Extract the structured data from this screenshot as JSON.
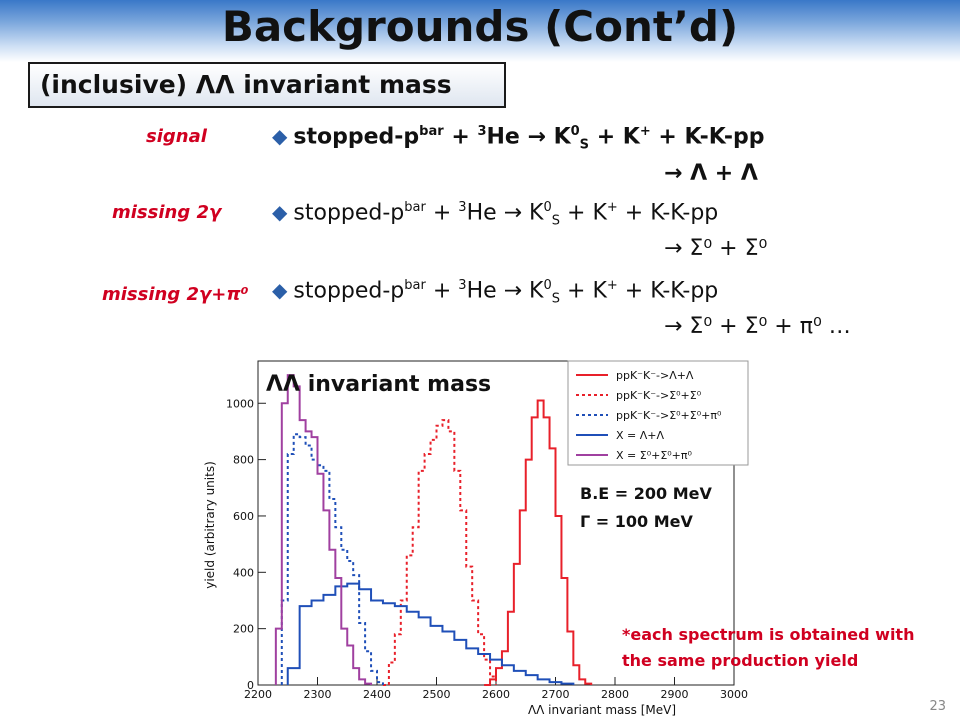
{
  "slide": {
    "title": "Backgrounds (Cont’d)",
    "subtitle": "(inclusive) ΛΛ invariant mass",
    "page_number": "23"
  },
  "reactions": [
    {
      "label": "signal",
      "line1_pre": "stopped-p",
      "line1_sup1": "bar",
      "line1_mid": " + ",
      "line1_sup2": "3",
      "line1_post": "He → K",
      "line1_sup3": "0",
      "line1_sub3": "S",
      "line1_end": " + K",
      "line1_sup4": "+",
      "line1_tail": " + K-K-pp",
      "line2": "→ Λ + Λ",
      "bold": true
    },
    {
      "label": "missing 2γ",
      "line1_pre": "stopped-p",
      "line1_sup1": "bar",
      "line1_mid": " + ",
      "line1_sup2": "3",
      "line1_post": "He → K",
      "line1_sup3": "0",
      "line1_sub3": "S",
      "line1_end": " + K",
      "line1_sup4": "+",
      "line1_tail": " + K-K-pp",
      "line2": "→ Σ⁰ + Σ⁰",
      "bold": false
    },
    {
      "label": "missing 2γ+π⁰",
      "line1_pre": "stopped-p",
      "line1_sup1": "bar",
      "line1_mid": " + ",
      "line1_sup2": "3",
      "line1_post": "He → K",
      "line1_sup3": "0",
      "line1_sub3": "S",
      "line1_end": " + K",
      "line1_sup4": "+",
      "line1_tail": " + K-K-pp",
      "line2": "→ Σ⁰ + Σ⁰ + π⁰ …",
      "bold": false
    }
  ],
  "annotations": {
    "be": "B.E = 200 MeV",
    "gamma": "Γ   = 100 MeV",
    "note_line1": "*each spectrum is obtained with",
    "note_line2": "the same production yield"
  },
  "chart_data": {
    "type": "line",
    "title": "ΛΛ invariant mass",
    "xlabel": "ΛΛ invariant mass [MeV]",
    "ylabel": "yield (arbitrary units)",
    "xlim": [
      2200,
      3000
    ],
    "ylim": [
      0,
      1150
    ],
    "xticks": [
      2200,
      2300,
      2400,
      2500,
      2600,
      2700,
      2800,
      2900,
      3000
    ],
    "yticks": [
      0,
      200,
      400,
      600,
      800,
      1000
    ],
    "legend_position": "top-right",
    "series": [
      {
        "name": "ppK⁻K⁻->Λ+Λ",
        "color": "#e8202a",
        "dash": "solid",
        "width": 2,
        "x": [
          2580,
          2590,
          2600,
          2610,
          2620,
          2630,
          2640,
          2650,
          2660,
          2670,
          2680,
          2690,
          2700,
          2710,
          2720,
          2730,
          2740,
          2750,
          2760
        ],
        "y": [
          0,
          20,
          60,
          120,
          260,
          430,
          620,
          800,
          950,
          1010,
          950,
          840,
          600,
          380,
          190,
          70,
          20,
          5,
          0
        ]
      },
      {
        "name": "ppK⁻K⁻->Σ⁰+Σ⁰",
        "color": "#e8202a",
        "dash": "3,3",
        "width": 2,
        "x": [
          2410,
          2420,
          2430,
          2440,
          2450,
          2460,
          2470,
          2480,
          2490,
          2500,
          2510,
          2520,
          2530,
          2540,
          2550,
          2560,
          2570,
          2580,
          2590,
          2600
        ],
        "y": [
          0,
          80,
          180,
          300,
          460,
          560,
          760,
          820,
          870,
          920,
          940,
          900,
          760,
          620,
          420,
          300,
          180,
          90,
          30,
          0
        ]
      },
      {
        "name": "ppK⁻K⁻->Σ⁰+Σ⁰+π⁰",
        "color": "#1f4fb8",
        "dash": "3,3",
        "width": 2,
        "x": [
          2240,
          2250,
          2260,
          2270,
          2280,
          2290,
          2300,
          2310,
          2320,
          2330,
          2340,
          2350,
          2360,
          2370,
          2380,
          2390,
          2400,
          2410
        ],
        "y": [
          300,
          820,
          890,
          880,
          850,
          800,
          780,
          760,
          660,
          560,
          480,
          440,
          390,
          220,
          120,
          50,
          10,
          0
        ]
      },
      {
        "name": "X = Λ+Λ",
        "color": "#1f4fb8",
        "dash": "solid",
        "width": 2,
        "x": [
          2250,
          2270,
          2290,
          2310,
          2330,
          2350,
          2370,
          2390,
          2410,
          2430,
          2450,
          2470,
          2490,
          2510,
          2530,
          2550,
          2570,
          2590,
          2610,
          2630,
          2650,
          2670,
          2690,
          2710,
          2730
        ],
        "y": [
          60,
          280,
          300,
          320,
          350,
          360,
          340,
          300,
          290,
          280,
          260,
          240,
          210,
          190,
          160,
          130,
          110,
          90,
          70,
          50,
          35,
          20,
          10,
          5,
          0
        ]
      },
      {
        "name": "X = Σ⁰+Σ⁰+π⁰",
        "color": "#a040a0",
        "dash": "solid",
        "width": 2,
        "x": [
          2230,
          2240,
          2250,
          2260,
          2270,
          2280,
          2290,
          2300,
          2310,
          2320,
          2330,
          2340,
          2350,
          2360,
          2370,
          2380,
          2390
        ],
        "y": [
          200,
          1000,
          1100,
          1060,
          940,
          900,
          880,
          750,
          620,
          480,
          380,
          200,
          140,
          60,
          20,
          5,
          0
        ]
      }
    ]
  }
}
